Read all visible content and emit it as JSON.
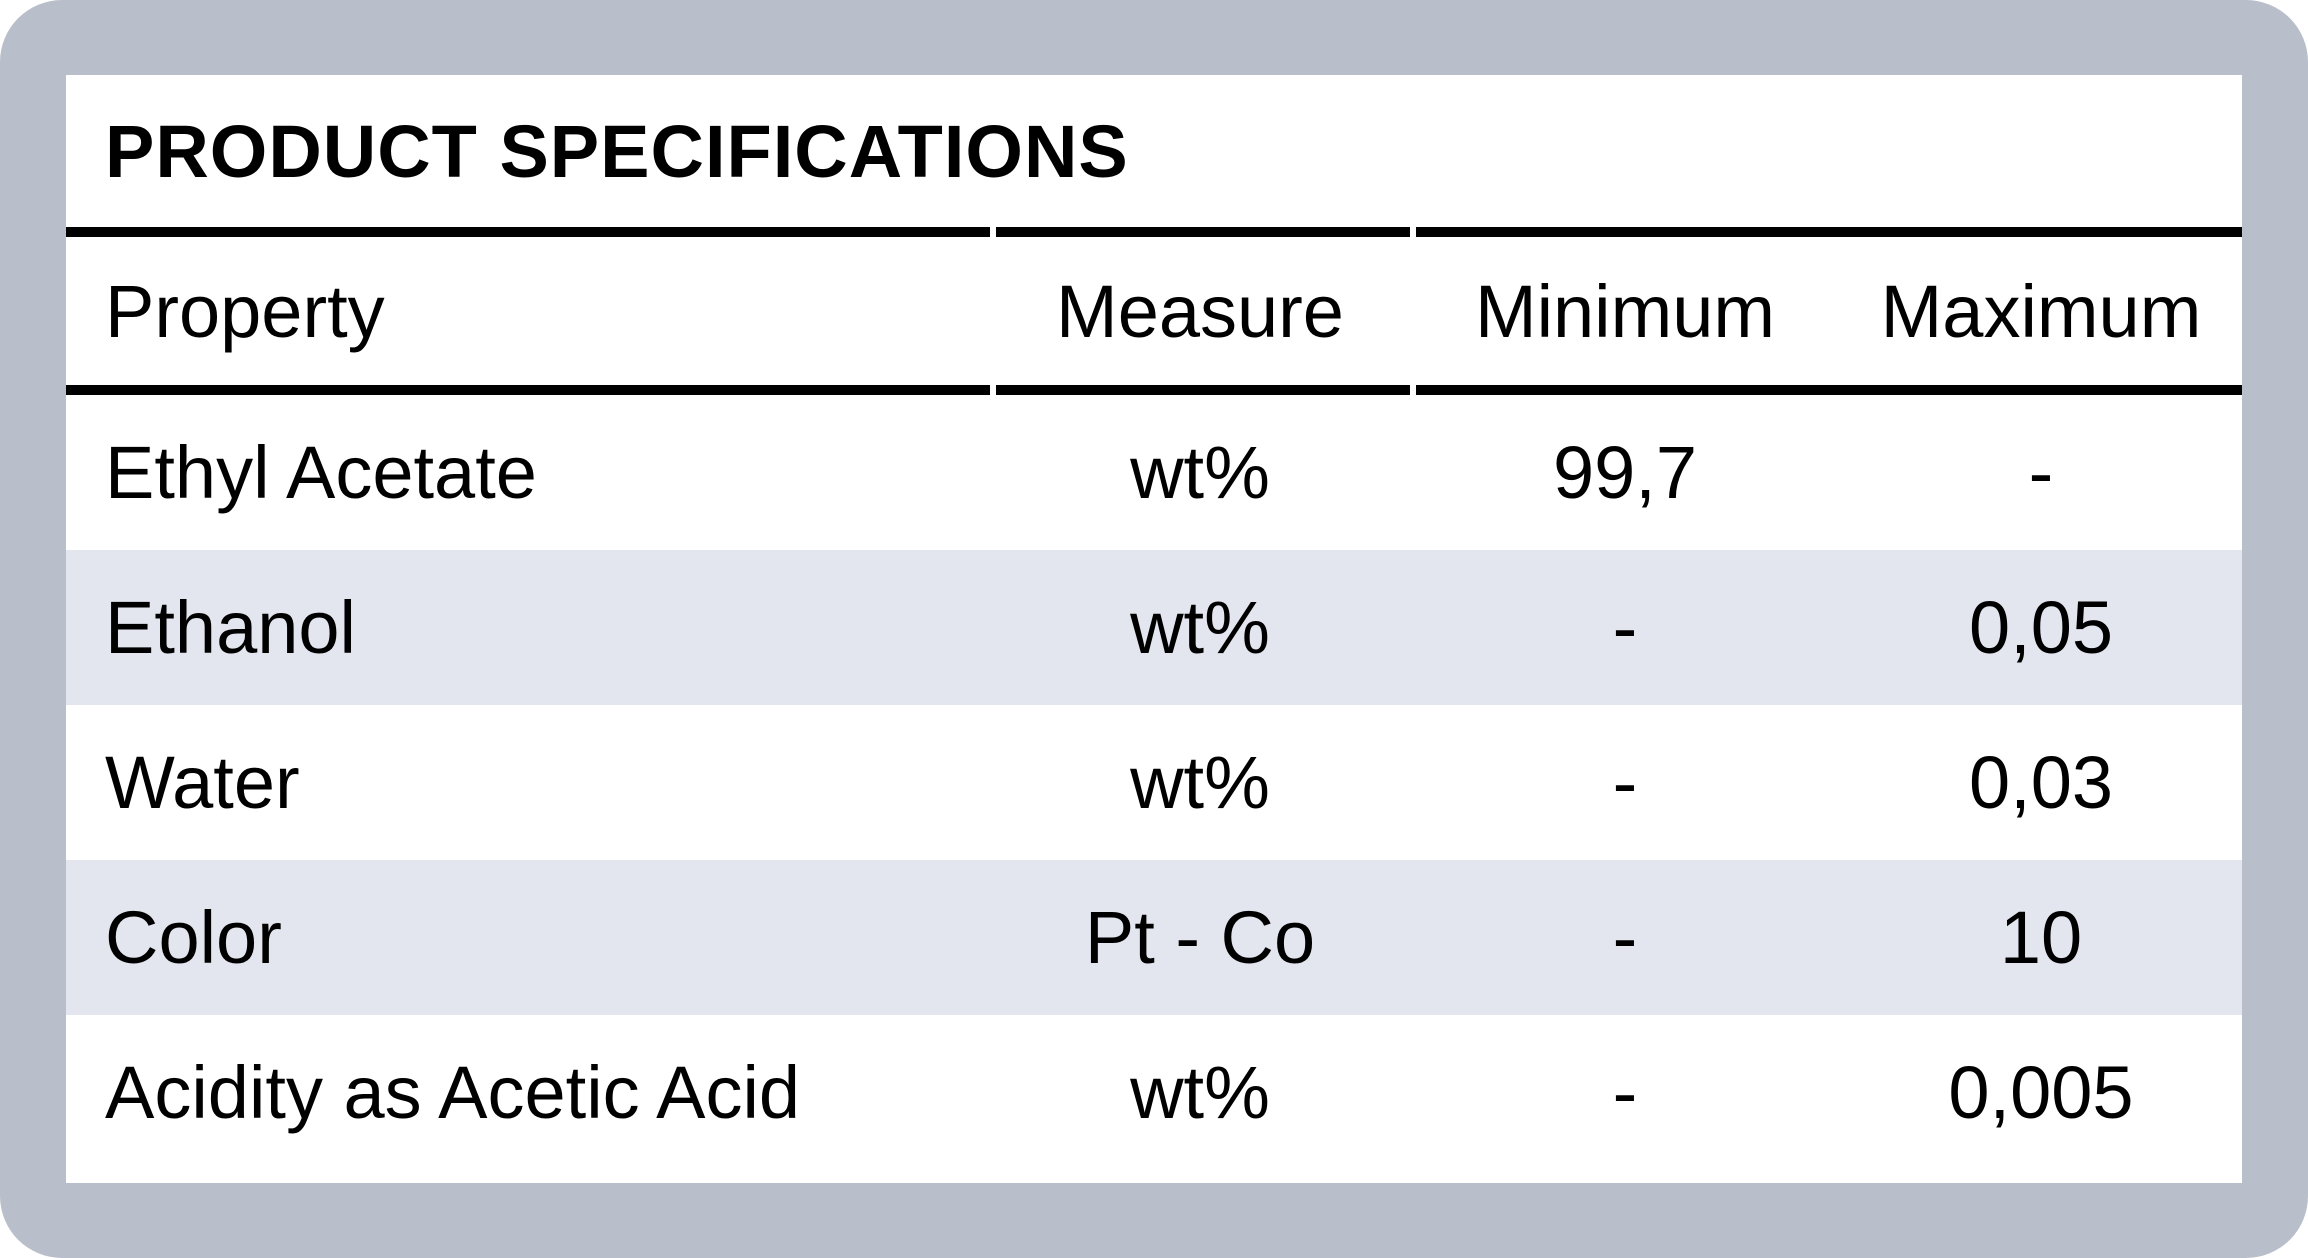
{
  "title": "PRODUCT SPECIFICATIONS",
  "table": {
    "columns": [
      "Property",
      "Measure",
      "Minimum",
      "Maximum"
    ],
    "rows": [
      {
        "property": "Ethyl Acetate",
        "measure": "wt%",
        "minimum": "99,7",
        "maximum": "-"
      },
      {
        "property": "Ethanol",
        "measure": "wt%",
        "minimum": "-",
        "maximum": "0,05"
      },
      {
        "property": "Water",
        "measure": "wt%",
        "minimum": "-",
        "maximum": "0,03"
      },
      {
        "property": "Color",
        "measure": "Pt - Co",
        "minimum": "-",
        "maximum": "10"
      },
      {
        "property": "Acidity as Acetic Acid",
        "measure": "wt%",
        "minimum": "-",
        "maximum": "0,005"
      }
    ]
  },
  "colors": {
    "background": "#b9bfca",
    "card": "#ffffff",
    "row_alt": "#e3e6ef",
    "rule": "#000000",
    "text": "#000000"
  }
}
